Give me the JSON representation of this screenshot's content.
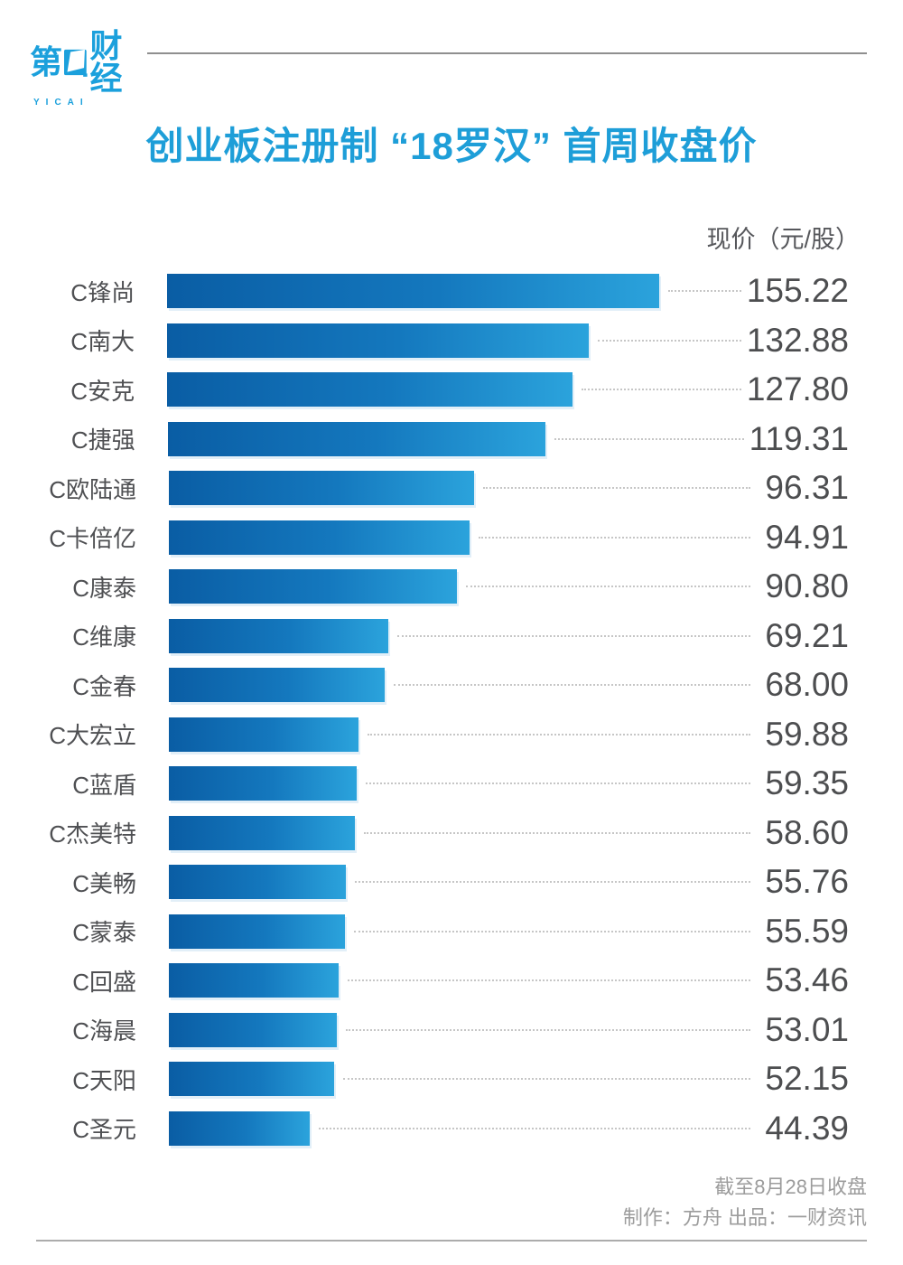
{
  "logo": {
    "text_part1": "第",
    "text_part2": "财经",
    "subtext": "YICAI",
    "color": "#1BA0DC"
  },
  "title": "创业板注册制 “18罗汉” 首周收盘价",
  "unit_label": "现价（元/股）",
  "footer": {
    "note1": "截至8月28日收盘",
    "note2": "制作：方舟 出品：一财资讯"
  },
  "colors": {
    "title_blue": "#1E9ED8",
    "bar_gradient_start": "#0A5DA4",
    "bar_gradient_end": "#2BA3DC",
    "label_gray": "#4F5053",
    "value_gray": "#4D4E50",
    "leader_dotted": "#C6C6C6",
    "footer_gray": "#9C9C9C",
    "rule_gray": "#8F8F8F"
  },
  "chart_data": {
    "type": "bar",
    "orientation": "horizontal",
    "title": "创业板注册制 “18罗汉” 首周收盘价",
    "xlabel": "现价（元/股）",
    "ylabel": "",
    "xlim": [
      0,
      155.22
    ],
    "grid": false,
    "legend": false,
    "categories": [
      "C锋尚",
      "C南大",
      "C安克",
      "C捷强",
      "C欧陆通",
      "C卡倍亿",
      "C康泰",
      "C维康",
      "C金春",
      "C大宏立",
      "C蓝盾",
      "C杰美特",
      "C美畅",
      "C蒙泰",
      "C回盛",
      "C海晨",
      "C天阳",
      "C圣元"
    ],
    "values": [
      155.22,
      132.88,
      127.8,
      119.31,
      96.31,
      94.91,
      90.8,
      69.21,
      68.0,
      59.88,
      59.35,
      58.6,
      55.76,
      55.59,
      53.46,
      53.01,
      52.15,
      44.39
    ],
    "value_labels": [
      "155.22",
      "132.88",
      "127.80",
      "119.31",
      "96.31",
      "94.91",
      "90.80",
      "69.21",
      "68.00",
      "59.88",
      "59.35",
      "58.60",
      "55.76",
      "55.59",
      "53.46",
      "53.01",
      "52.15",
      "44.39"
    ]
  }
}
